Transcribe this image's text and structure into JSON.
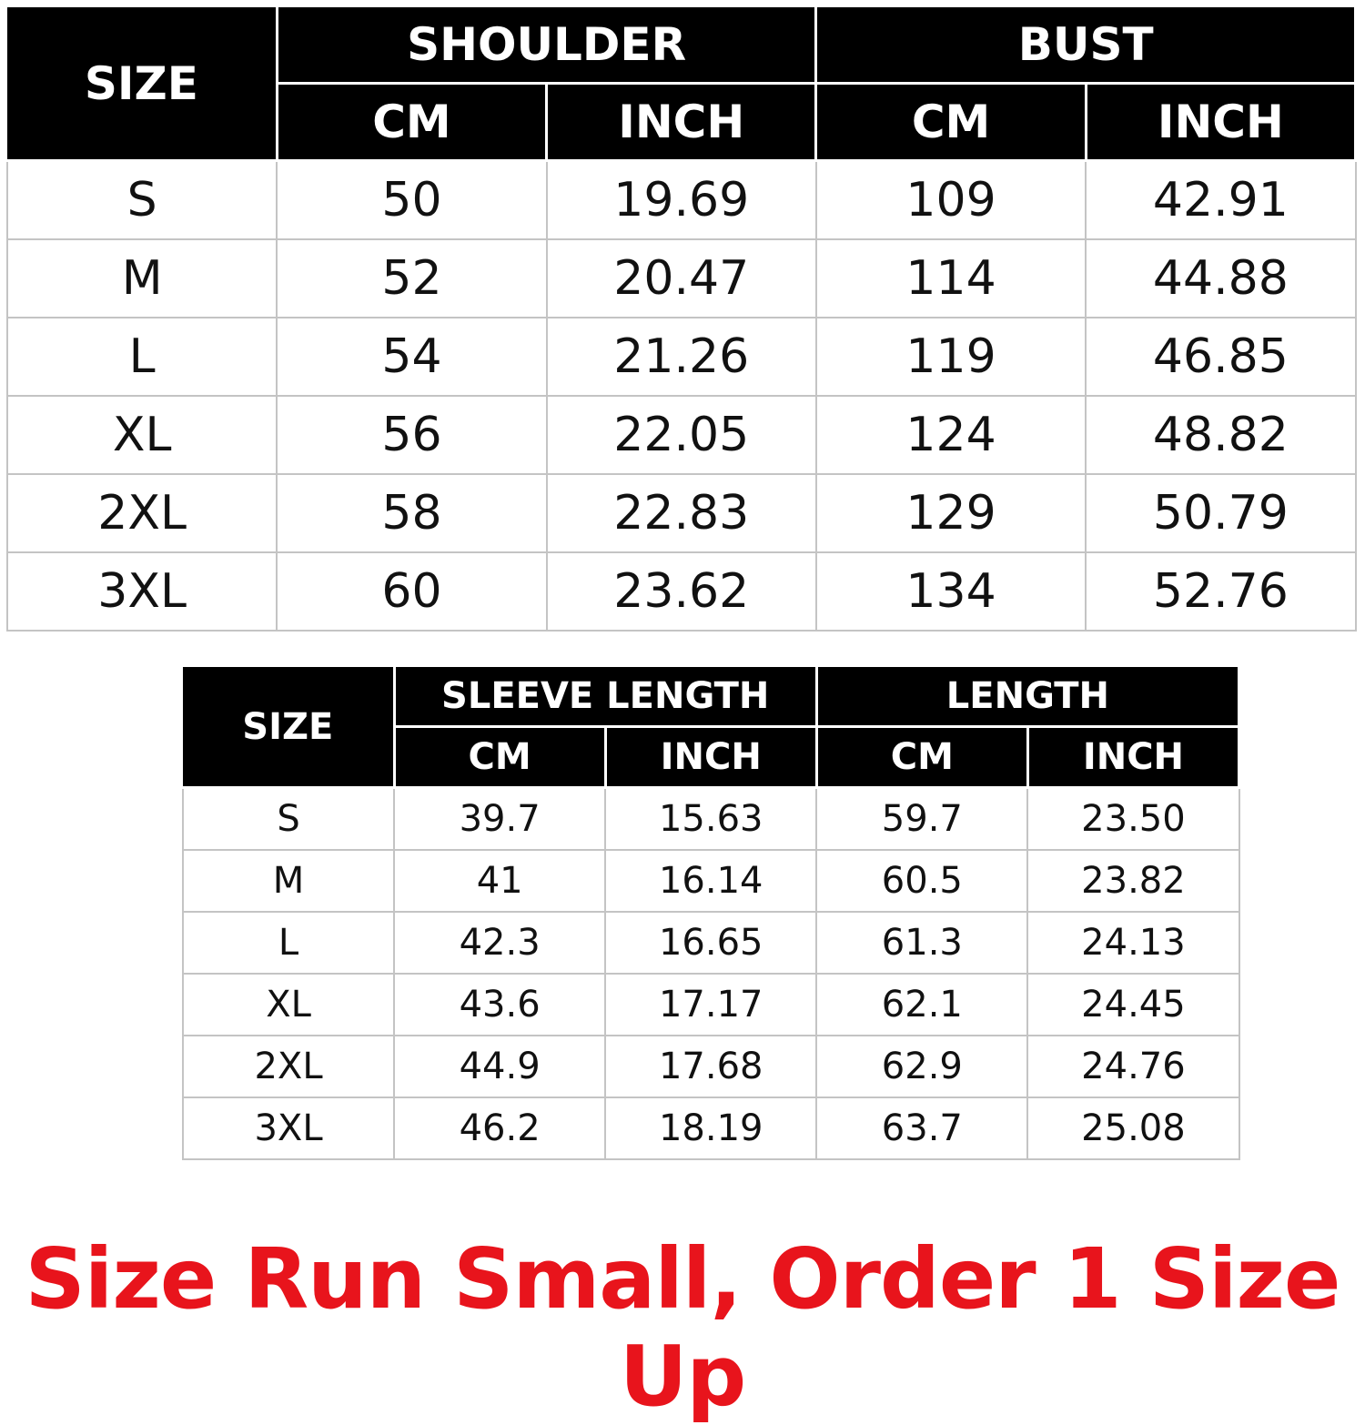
{
  "tables": [
    {
      "size_label": "SIZE",
      "groups": [
        "SHOULDER",
        "BUST"
      ],
      "units": [
        "CM",
        "INCH",
        "CM",
        "INCH"
      ],
      "rows": [
        [
          "S",
          "50",
          "19.69",
          "109",
          "42.91"
        ],
        [
          "M",
          "52",
          "20.47",
          "114",
          "44.88"
        ],
        [
          "L",
          "54",
          "21.26",
          "119",
          "46.85"
        ],
        [
          "XL",
          "56",
          "22.05",
          "124",
          "48.82"
        ],
        [
          "2XL",
          "58",
          "22.83",
          "129",
          "50.79"
        ],
        [
          "3XL",
          "60",
          "23.62",
          "134",
          "52.76"
        ]
      ]
    },
    {
      "size_label": "SIZE",
      "groups": [
        "SLEEVE LENGTH",
        "LENGTH"
      ],
      "units": [
        "CM",
        "INCH",
        "CM",
        "INCH"
      ],
      "rows": [
        [
          "S",
          "39.7",
          "15.63",
          "59.7",
          "23.50"
        ],
        [
          "M",
          "41",
          "16.14",
          "60.5",
          "23.82"
        ],
        [
          "L",
          "42.3",
          "16.65",
          "61.3",
          "24.13"
        ],
        [
          "XL",
          "43.6",
          "17.17",
          "62.1",
          "24.45"
        ],
        [
          "2XL",
          "44.9",
          "17.68",
          "62.9",
          "24.76"
        ],
        [
          "3XL",
          "46.2",
          "18.19",
          "63.7",
          "25.08"
        ]
      ]
    }
  ],
  "note": "Size Run Small, Order 1 Size Up",
  "colors": {
    "header_bg": "#000000",
    "header_text": "#ffffff",
    "note": "#e8141c",
    "grid": "#c4c4c4"
  }
}
